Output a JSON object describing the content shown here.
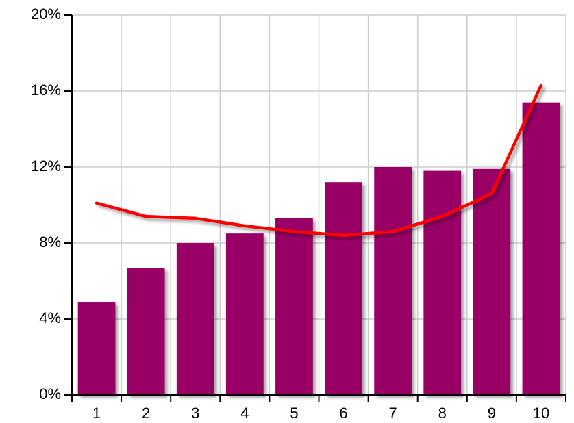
{
  "chart_data": {
    "type": "bar_line",
    "categories": [
      "1",
      "2",
      "3",
      "4",
      "5",
      "6",
      "7",
      "8",
      "9",
      "10"
    ],
    "series": [
      {
        "type": "bar",
        "color": "#990066",
        "values": [
          4.9,
          6.7,
          8.0,
          8.5,
          9.3,
          11.2,
          12.0,
          11.8,
          11.9,
          15.4
        ]
      },
      {
        "type": "line",
        "color": "#ff0000",
        "values": [
          10.1,
          9.4,
          9.3,
          8.9,
          8.6,
          8.4,
          8.6,
          9.4,
          10.6,
          16.3
        ]
      }
    ],
    "ylim": [
      0,
      20
    ],
    "yticks": [
      {
        "value": 0,
        "label": "0%"
      },
      {
        "value": 4,
        "label": "4%"
      },
      {
        "value": 8,
        "label": "8%"
      },
      {
        "value": 12,
        "label": "12%"
      },
      {
        "value": 16,
        "label": "16%"
      },
      {
        "value": 20,
        "label": "20%"
      }
    ],
    "grid": true
  }
}
